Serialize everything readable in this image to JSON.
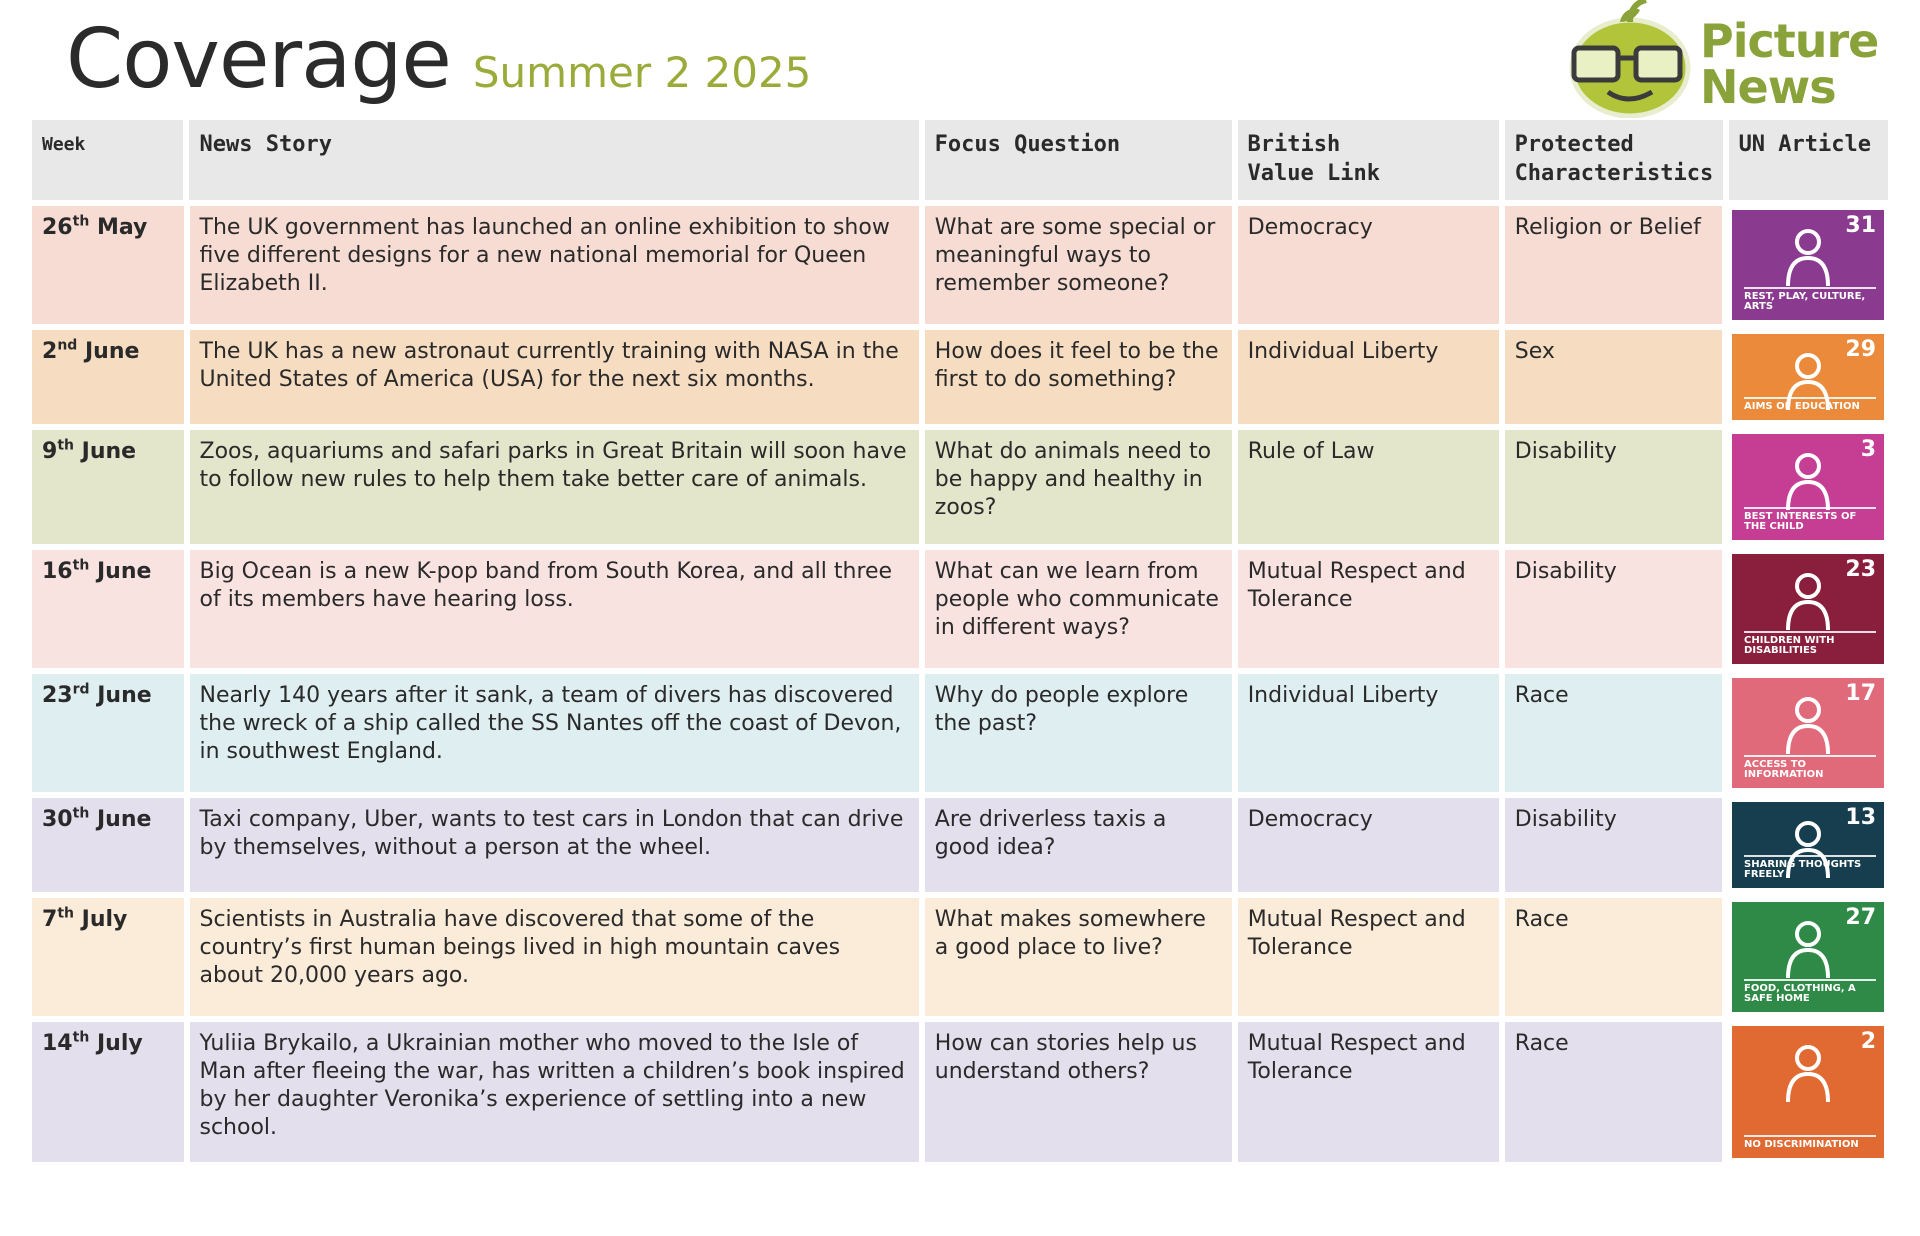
{
  "header": {
    "title": "Coverage",
    "subtitle": "Summer 2 2025",
    "brand_line1": "Picture",
    "brand_line2": "News"
  },
  "columns": {
    "week": "Week",
    "story": "News Story",
    "focus": "Focus Question",
    "value_line1": "British",
    "value_line2": "Value Link",
    "prot_line1": "Protected",
    "prot_line2": "Characteristics",
    "un": "UN Article"
  },
  "rows": [
    {
      "day": "26",
      "suffix": "th",
      "month": "May",
      "story": "The UK government has launched an online exhibition to show five different designs for a new national memorial for Queen Elizabeth II.",
      "focus": "What are some special or meaningful ways to remember someone?",
      "value": "Democracy",
      "prot": "Religion or Belief",
      "un_num": "31",
      "un_label": "Rest, play, culture, arts",
      "bg": "#f6dcd3",
      "un_color": "#8a3a8f"
    },
    {
      "day": "2",
      "suffix": "nd",
      "month": "June",
      "story": "The UK has a new astronaut currently training with NASA in the United States of America (USA) for the next six months.",
      "focus": "How does it feel to be the first to do something?",
      "value": "Individual Liberty",
      "prot": "Sex",
      "un_num": "29",
      "un_label": "Aims of education",
      "bg": "#f6dcc0",
      "un_color": "#ea8a3a"
    },
    {
      "day": "9",
      "suffix": "th",
      "month": "June",
      "story": "Zoos, aquariums and safari parks in Great Britain will soon have to follow new rules to help them take better care of animals.",
      "focus": "What do animals need to be happy and healthy in zoos?",
      "value": "Rule of Law",
      "prot": "Disability",
      "un_num": "3",
      "un_label": "Best interests of the child",
      "bg": "#e4e6cc",
      "un_color": "#c63e94"
    },
    {
      "day": "16",
      "suffix": "th",
      "month": "June",
      "story": "Big Ocean is a new K-pop band from South Korea, and all three of its members have hearing loss.",
      "focus": "What can we learn from people who communicate in different ways?",
      "value": "Mutual Respect and Tolerance",
      "prot": "Disability",
      "un_num": "23",
      "un_label": "Children with disabilities",
      "bg": "#f9e3e1",
      "un_color": "#8a1f3d"
    },
    {
      "day": "23",
      "suffix": "rd",
      "month": "June",
      "story": "Nearly 140 years after it sank, a team of divers has discovered the wreck of a ship called the SS Nantes off the coast of Devon, in southwest England.",
      "focus": "Why do people explore the past?",
      "value": "Individual Liberty",
      "prot": "Race",
      "un_num": "17",
      "un_label": "Access to information",
      "bg": "#dfeef1",
      "un_color": "#e06a7a"
    },
    {
      "day": "30",
      "suffix": "th",
      "month": " June",
      "story": "Taxi company, Uber, wants to test cars in London that can drive by themselves, without a person at the wheel.",
      "focus": "Are driverless taxis a good idea?",
      "value": "Democracy",
      "prot": "Disability",
      "un_num": "13",
      "un_label": "Sharing thoughts freely",
      "bg": "#e3dfec",
      "un_color": "#173e4e"
    },
    {
      "day": "7",
      "suffix": "th",
      "month": "July",
      "story": "Scientists in Australia have discovered that some of the country’s first human beings lived in high mountain caves about 20,000 years ago.",
      "focus": "What makes somewhere a good place to live?",
      "value": "Mutual Respect and Tolerance",
      "prot": "Race",
      "un_num": "27",
      "un_label": "Food, clothing, a safe home",
      "bg": "#fbebd9",
      "un_color": "#2f8a48"
    },
    {
      "day": "14",
      "suffix": "th",
      "month": "July",
      "story": "Yuliia Brykailo, a Ukrainian mother who moved to the Isle of Man after fleeing the war, has written a children’s book inspired by her daughter Veronika’s experience of settling into a new school.",
      "focus": "How can stories help us understand others?",
      "value": "Mutual Respect and Tolerance",
      "prot": "Race",
      "un_num": "2",
      "un_label": "No discrimination",
      "bg": "#e3dfec",
      "un_color": "#e06a32"
    }
  ]
}
